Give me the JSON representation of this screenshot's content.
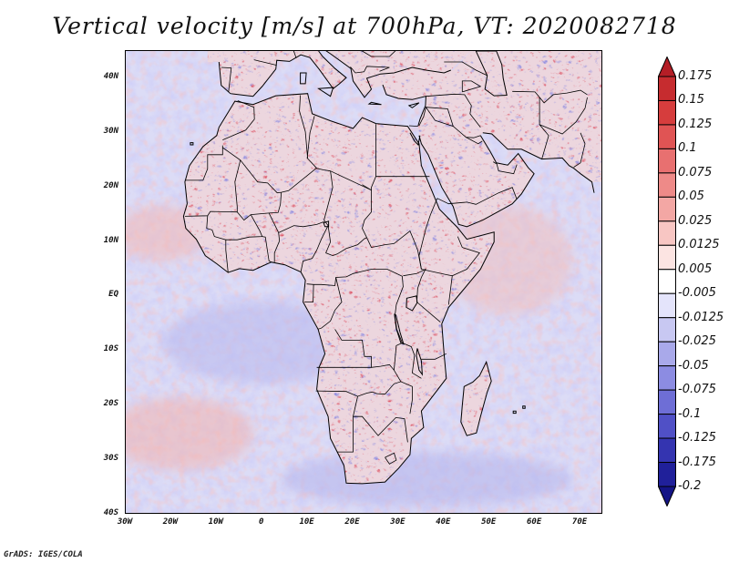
{
  "title": "Vertical velocity [m/s] at 700hPa, VT: 2020082718",
  "footer": "GrADS: IGES/COLA",
  "axes": {
    "lat_labels": [
      "40N",
      "30N",
      "20N",
      "10N",
      "EQ",
      "10S",
      "20S",
      "30S",
      "40S"
    ],
    "lat_values": [
      40,
      30,
      20,
      10,
      0,
      -10,
      -20,
      -30,
      -40
    ],
    "lon_labels": [
      "30W",
      "20W",
      "10W",
      "0",
      "10E",
      "20E",
      "30E",
      "40E",
      "50E",
      "60E",
      "70E"
    ],
    "lon_values": [
      -30,
      -20,
      -10,
      0,
      10,
      20,
      30,
      40,
      50,
      60,
      70
    ],
    "lat_range": [
      -40,
      45
    ],
    "lon_range": [
      -30,
      75
    ]
  },
  "colorbar": {
    "labels": [
      "0.175",
      "0.15",
      "0.125",
      "0.1",
      "0.075",
      "0.05",
      "0.025",
      "0.0125",
      "0.005",
      "-0.005",
      "-0.0125",
      "-0.025",
      "-0.05",
      "-0.075",
      "-0.1",
      "-0.125",
      "-0.175",
      "-0.2"
    ],
    "colors": [
      "#b41e26",
      "#c62c2f",
      "#d63d3d",
      "#e05454",
      "#e87070",
      "#ee8a88",
      "#f3a7a4",
      "#f8c6c3",
      "#fce4e2",
      "#ffffff",
      "#e4e4fb",
      "#c8c8f2",
      "#a9a9ea",
      "#8c8ce2",
      "#6e6ed6",
      "#5050c6",
      "#3434b0",
      "#20209a",
      "#141486"
    ]
  }
}
